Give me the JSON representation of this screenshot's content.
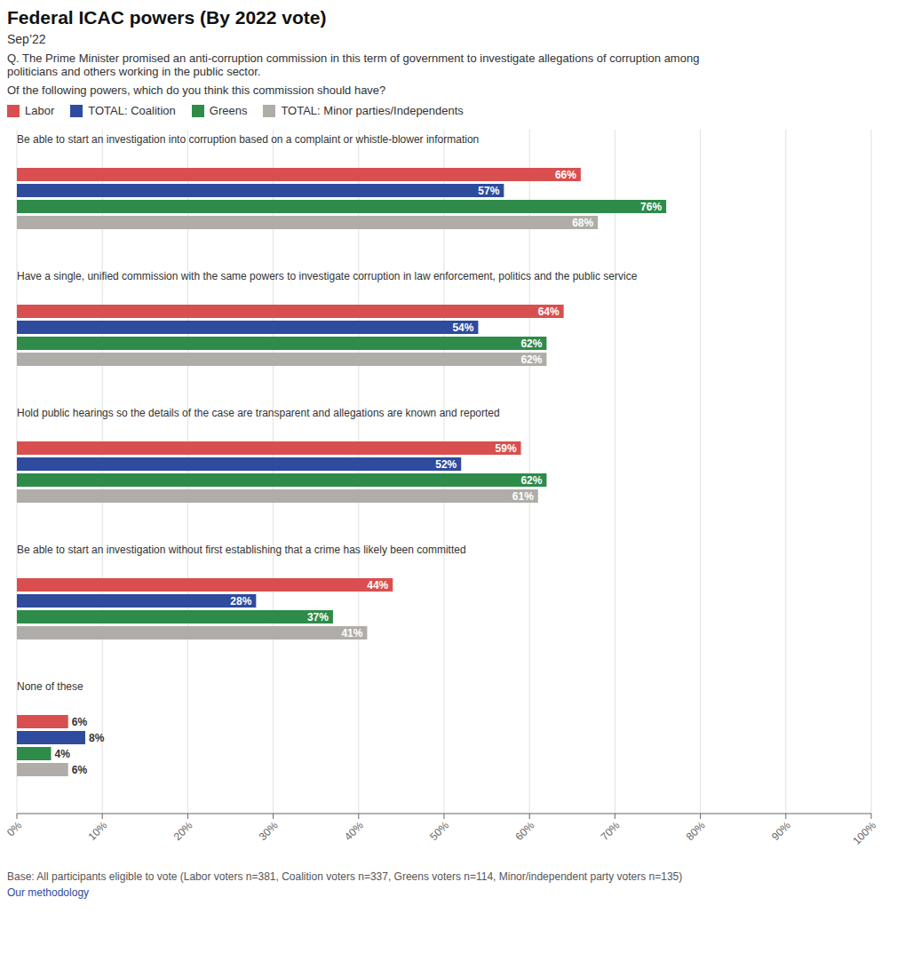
{
  "chart_data": {
    "type": "bar",
    "orientation": "horizontal",
    "title": "Federal ICAC powers (By 2022 vote)",
    "subtitle": "Sep’22",
    "annotations": [
      "Q. The Prime Minister promised an anti-corruption commission in this term of government to investigate allegations of corruption among\npoliticians and others working in the public sector.",
      "Of the following powers, which do you think this commission should have?",
      "Base: All participants eligible to vote (Labor voters n=381, Coalition voters n=337, Greens voters n=114, Minor/independent party voters n=135)",
      "Our methodology"
    ],
    "categories": [
      "Be able to start an investigation into corruption based on a complaint or whistle-blower information",
      "Have a single, unified commission with the same powers to investigate corruption in law enforcement, politics and the public service",
      "Hold public hearings so the details of the case are transparent and allegations are known and reported",
      "Be able to start an investigation without first establishing that a crime has likely been committed",
      "None of these"
    ],
    "series": [
      {
        "name": "Labor",
        "color": "#d94f4f",
        "values": [
          66,
          64,
          59,
          44,
          6
        ],
        "value_labels": [
          "66%",
          "64%",
          "59%",
          "44%",
          "6%"
        ]
      },
      {
        "name": "TOTAL: Coalition",
        "color": "#2e4b9e",
        "values": [
          57,
          54,
          52,
          28,
          8
        ],
        "value_labels": [
          "57%",
          "54%",
          "52%",
          "28%",
          "8%"
        ]
      },
      {
        "name": "Greens",
        "color": "#2e8b4a",
        "values": [
          76,
          62,
          62,
          37,
          4
        ],
        "value_labels": [
          "76%",
          "62%",
          "62%",
          "37%",
          "4%"
        ]
      },
      {
        "name": "TOTAL: Minor parties/Independents",
        "color": "#b0ada8",
        "values": [
          68,
          62,
          61,
          41,
          6
        ],
        "value_labels": [
          "68%",
          "62%",
          "61%",
          "41%",
          "6%"
        ]
      }
    ],
    "xlim": [
      0,
      100
    ],
    "xticks": [
      {
        "value": 0,
        "label": "0%"
      },
      {
        "value": 10,
        "label": "10%"
      },
      {
        "value": 20,
        "label": "20%"
      },
      {
        "value": 30,
        "label": "30%"
      },
      {
        "value": 40,
        "label": "40%"
      },
      {
        "value": 50,
        "label": "50%"
      },
      {
        "value": 60,
        "label": "60%"
      },
      {
        "value": 70,
        "label": "70%"
      },
      {
        "value": 80,
        "label": "80%"
      },
      {
        "value": 90,
        "label": "90%"
      },
      {
        "value": 100,
        "label": "100%"
      }
    ],
    "grid": true,
    "legend": "top",
    "data_labels": true
  }
}
